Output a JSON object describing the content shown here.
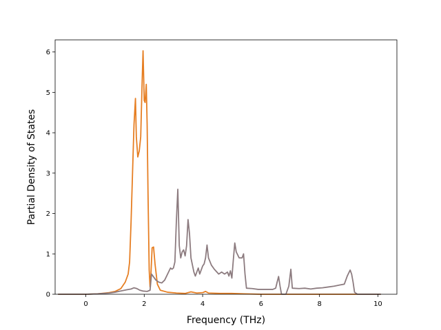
{
  "chart_data": {
    "type": "line",
    "title": "",
    "xlabel": "Frequency (THz)",
    "ylabel": "Partial Density of States",
    "xlim": [
      -1.05,
      10.65
    ],
    "ylim": [
      0,
      6.3
    ],
    "xticks": [
      0,
      2,
      4,
      6,
      8,
      10
    ],
    "yticks": [
      0,
      1,
      2,
      3,
      4,
      5,
      6
    ],
    "grid": false,
    "legend": "none",
    "series": [
      {
        "color": "#e67e22",
        "points": [
          [
            -0.95,
            0
          ],
          [
            0.0,
            0.0
          ],
          [
            0.4,
            0.01
          ],
          [
            0.8,
            0.04
          ],
          [
            1.0,
            0.07
          ],
          [
            1.2,
            0.14
          ],
          [
            1.35,
            0.3
          ],
          [
            1.45,
            0.5
          ],
          [
            1.5,
            0.8
          ],
          [
            1.55,
            1.8
          ],
          [
            1.6,
            3.0
          ],
          [
            1.65,
            4.2
          ],
          [
            1.7,
            4.85
          ],
          [
            1.73,
            3.9
          ],
          [
            1.78,
            3.4
          ],
          [
            1.83,
            3.55
          ],
          [
            1.88,
            3.9
          ],
          [
            1.93,
            5.3
          ],
          [
            1.96,
            6.03
          ],
          [
            2.0,
            4.8
          ],
          [
            2.03,
            4.75
          ],
          [
            2.07,
            5.2
          ],
          [
            2.1,
            4.2
          ],
          [
            2.13,
            2.5
          ],
          [
            2.17,
            0.6
          ],
          [
            2.2,
            0.18
          ],
          [
            2.23,
            0.5
          ],
          [
            2.27,
            1.15
          ],
          [
            2.32,
            1.17
          ],
          [
            2.37,
            0.75
          ],
          [
            2.45,
            0.25
          ],
          [
            2.55,
            0.1
          ],
          [
            2.8,
            0.05
          ],
          [
            3.1,
            0.03
          ],
          [
            3.4,
            0.02
          ],
          [
            3.6,
            0.06
          ],
          [
            3.8,
            0.03
          ],
          [
            4.0,
            0.04
          ],
          [
            4.1,
            0.07
          ],
          [
            4.2,
            0.03
          ],
          [
            4.6,
            0.02
          ],
          [
            5.0,
            0.02
          ],
          [
            5.4,
            0.01
          ],
          [
            6.0,
            0.0
          ],
          [
            10.1,
            0
          ]
        ]
      },
      {
        "color": "#8c7b7f",
        "points": [
          [
            -0.95,
            0
          ],
          [
            0.0,
            0.0
          ],
          [
            0.4,
            0.01
          ],
          [
            0.8,
            0.03
          ],
          [
            1.0,
            0.05
          ],
          [
            1.2,
            0.08
          ],
          [
            1.4,
            0.11
          ],
          [
            1.55,
            0.13
          ],
          [
            1.65,
            0.16
          ],
          [
            1.75,
            0.14
          ],
          [
            1.85,
            0.1
          ],
          [
            1.95,
            0.08
          ],
          [
            2.1,
            0.07
          ],
          [
            2.2,
            0.1
          ],
          [
            2.25,
            0.5
          ],
          [
            2.3,
            0.45
          ],
          [
            2.4,
            0.35
          ],
          [
            2.5,
            0.3
          ],
          [
            2.6,
            0.28
          ],
          [
            2.7,
            0.35
          ],
          [
            2.8,
            0.5
          ],
          [
            2.9,
            0.65
          ],
          [
            2.95,
            0.62
          ],
          [
            3.0,
            0.65
          ],
          [
            3.05,
            0.8
          ],
          [
            3.1,
            1.8
          ],
          [
            3.15,
            2.6
          ],
          [
            3.2,
            1.2
          ],
          [
            3.25,
            0.9
          ],
          [
            3.3,
            1.05
          ],
          [
            3.35,
            1.1
          ],
          [
            3.4,
            0.95
          ],
          [
            3.45,
            1.2
          ],
          [
            3.5,
            1.85
          ],
          [
            3.55,
            1.5
          ],
          [
            3.6,
            0.9
          ],
          [
            3.7,
            0.55
          ],
          [
            3.75,
            0.45
          ],
          [
            3.85,
            0.65
          ],
          [
            3.9,
            0.5
          ],
          [
            4.0,
            0.7
          ],
          [
            4.05,
            0.75
          ],
          [
            4.1,
            0.9
          ],
          [
            4.15,
            1.22
          ],
          [
            4.2,
            0.9
          ],
          [
            4.3,
            0.72
          ],
          [
            4.4,
            0.62
          ],
          [
            4.55,
            0.5
          ],
          [
            4.65,
            0.55
          ],
          [
            4.75,
            0.5
          ],
          [
            4.85,
            0.55
          ],
          [
            4.9,
            0.45
          ],
          [
            4.95,
            0.58
          ],
          [
            5.0,
            0.4
          ],
          [
            5.05,
            0.85
          ],
          [
            5.1,
            1.27
          ],
          [
            5.15,
            1.05
          ],
          [
            5.25,
            0.9
          ],
          [
            5.35,
            0.9
          ],
          [
            5.4,
            1.0
          ],
          [
            5.45,
            0.5
          ],
          [
            5.5,
            0.15
          ],
          [
            5.7,
            0.14
          ],
          [
            5.9,
            0.12
          ],
          [
            6.1,
            0.12
          ],
          [
            6.3,
            0.12
          ],
          [
            6.4,
            0.12
          ],
          [
            6.5,
            0.15
          ],
          [
            6.55,
            0.3
          ],
          [
            6.6,
            0.44
          ],
          [
            6.65,
            0.2
          ],
          [
            6.7,
            0.0
          ],
          [
            6.85,
            0.0
          ],
          [
            6.95,
            0.2
          ],
          [
            7.02,
            0.62
          ],
          [
            7.07,
            0.15
          ],
          [
            7.3,
            0.14
          ],
          [
            7.5,
            0.15
          ],
          [
            7.7,
            0.13
          ],
          [
            7.9,
            0.15
          ],
          [
            8.1,
            0.16
          ],
          [
            8.3,
            0.18
          ],
          [
            8.5,
            0.2
          ],
          [
            8.7,
            0.23
          ],
          [
            8.85,
            0.25
          ],
          [
            8.95,
            0.45
          ],
          [
            9.05,
            0.6
          ],
          [
            9.1,
            0.5
          ],
          [
            9.15,
            0.3
          ],
          [
            9.2,
            0.05
          ],
          [
            9.3,
            0.0
          ],
          [
            10.1,
            0
          ]
        ]
      }
    ]
  }
}
